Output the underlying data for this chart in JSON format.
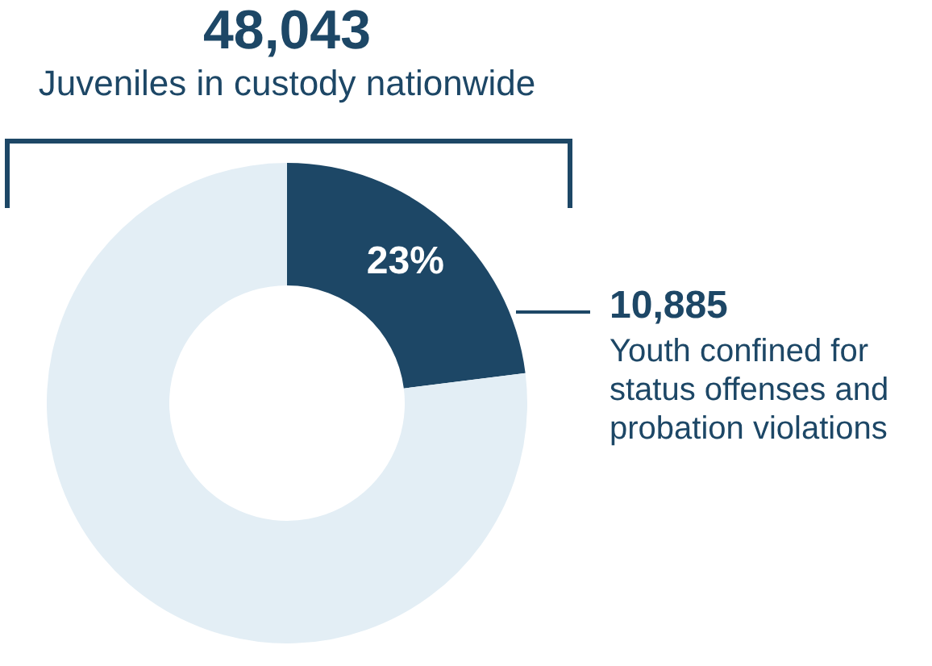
{
  "chart_data": {
    "type": "donut",
    "title": "48,043",
    "subtitle": "Juveniles in custody nationwide",
    "categories": [
      "Youth confined for status offenses and probation violations",
      null
    ],
    "values": [
      23,
      77
    ],
    "colors": [
      "#1d4766",
      "#e3eef5"
    ],
    "value_labels": [
      "23%",
      null
    ],
    "annotations": [
      "10,885"
    ],
    "legend": false
  }
}
